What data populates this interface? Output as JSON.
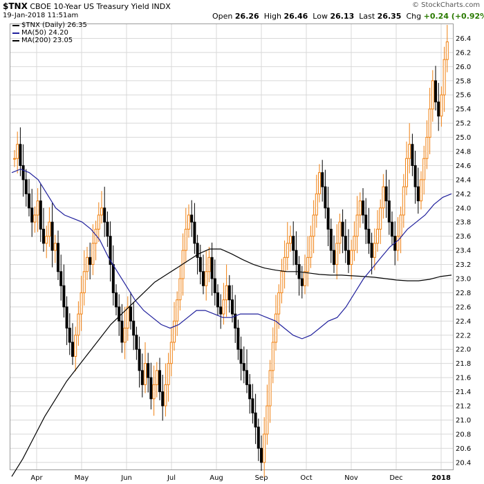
{
  "header": {
    "symbol": "$TNX",
    "title": "CBOE 10-Year US Treasury Yield",
    "exchange": "INDX",
    "datetime": "19-Jan-2018 11:51am",
    "open_label": "Open",
    "open": "26.26",
    "high_label": "High",
    "high": "26.46",
    "low_label": "Low",
    "low": "26.13",
    "last_label": "Last",
    "last": "26.35",
    "chg_label": "Chg",
    "chg": "+0.24 (+0.92%)",
    "logo": "© StockCharts.com"
  },
  "legend": [
    {
      "label": "$TNX (Daily) 26.35",
      "color": "#000000"
    },
    {
      "label": "MA(50) 24.20",
      "color": "#1f1f9c"
    },
    {
      "label": "MA(200) 23.05",
      "color": "#000000"
    }
  ],
  "colors": {
    "up": "#f08010",
    "down": "#000000",
    "ma50": "#1f1f9c",
    "ma200": "#000000",
    "grid": "#d8d8d8"
  },
  "chart_data": {
    "type": "candlestick",
    "x_labels": [
      "Apr",
      "May",
      "Jun",
      "Jul",
      "Aug",
      "Sep",
      "Oct",
      "Nov",
      "Dec",
      "2018"
    ],
    "yticks": [
      "20.4",
      "20.6",
      "20.8",
      "21.0",
      "21.2",
      "21.4",
      "21.6",
      "21.8",
      "22.0",
      "22.2",
      "22.4",
      "22.6",
      "22.8",
      "23.0",
      "23.2",
      "23.4",
      "23.6",
      "23.8",
      "24.0",
      "24.2",
      "24.4",
      "24.6",
      "24.8",
      "25.0",
      "25.2",
      "25.4",
      "25.6",
      "25.8",
      "26.0",
      "26.2",
      "26.4"
    ],
    "ylim": [
      20.3,
      26.6
    ],
    "grid": true,
    "close": [
      24.7,
      24.9,
      24.6,
      24.4,
      24.2,
      24.0,
      23.8,
      23.9,
      24.1,
      23.7,
      23.5,
      23.6,
      23.8,
      23.4,
      23.5,
      23.1,
      22.9,
      22.6,
      22.3,
      22.1,
      21.9,
      22.2,
      22.5,
      22.8,
      23.1,
      23.3,
      23.2,
      23.5,
      23.7,
      23.9,
      24.0,
      23.8,
      23.6,
      23.2,
      22.8,
      22.6,
      22.4,
      22.1,
      22.3,
      22.6,
      22.4,
      22.2,
      22.0,
      21.7,
      21.5,
      21.8,
      21.6,
      21.3,
      21.5,
      21.7,
      21.4,
      21.2,
      21.5,
      21.8,
      22.1,
      22.4,
      22.7,
      23.0,
      23.4,
      23.7,
      23.9,
      23.8,
      23.5,
      23.3,
      23.1,
      22.9,
      23.1,
      23.3,
      23.0,
      22.8,
      22.6,
      22.5,
      22.7,
      22.9,
      22.7,
      22.5,
      22.3,
      22.0,
      21.8,
      21.7,
      21.5,
      21.3,
      21.1,
      20.9,
      20.6,
      20.4,
      20.8,
      21.2,
      21.7,
      22.1,
      22.5,
      22.8,
      23.1,
      23.3,
      23.5,
      23.6,
      23.4,
      23.2,
      23.0,
      22.9,
      23.1,
      23.3,
      23.6,
      23.9,
      24.2,
      24.5,
      24.3,
      24.0,
      23.7,
      23.4,
      23.2,
      23.5,
      23.8,
      23.6,
      23.4,
      23.2,
      23.4,
      23.6,
      23.9,
      24.1,
      23.9,
      23.7,
      23.5,
      23.3,
      23.5,
      23.7,
      24.0,
      24.3,
      24.1,
      23.8,
      23.6,
      23.4,
      23.6,
      23.9,
      24.3,
      24.7,
      24.9,
      24.6,
      24.3,
      24.1,
      24.4,
      24.7,
      25.0,
      25.4,
      25.8,
      25.5,
      25.3,
      25.6,
      26.1,
      26.35
    ],
    "ma50": [
      24.5,
      24.55,
      24.5,
      24.4,
      24.2,
      24.0,
      23.9,
      23.85,
      23.8,
      23.7,
      23.55,
      23.3,
      23.1,
      22.9,
      22.7,
      22.55,
      22.45,
      22.35,
      22.3,
      22.35,
      22.45,
      22.55,
      22.55,
      22.5,
      22.45,
      22.45,
      22.5,
      22.5,
      22.5,
      22.45,
      22.4,
      22.3,
      22.2,
      22.15,
      22.2,
      22.3,
      22.4,
      22.45,
      22.6,
      22.8,
      23.0,
      23.15,
      23.3,
      23.45,
      23.55,
      23.7,
      23.8,
      23.9,
      24.05,
      24.15,
      24.2
    ],
    "ma200": [
      20.2,
      20.45,
      20.75,
      21.05,
      21.3,
      21.55,
      21.75,
      21.95,
      22.15,
      22.35,
      22.5,
      22.65,
      22.8,
      22.95,
      23.05,
      23.15,
      23.25,
      23.35,
      23.42,
      23.42,
      23.35,
      23.27,
      23.2,
      23.15,
      23.12,
      23.1,
      23.1,
      23.08,
      23.06,
      23.05,
      23.05,
      23.04,
      23.03,
      23.02,
      23.0,
      22.98,
      22.97,
      22.97,
      22.99,
      23.03,
      23.05
    ]
  }
}
